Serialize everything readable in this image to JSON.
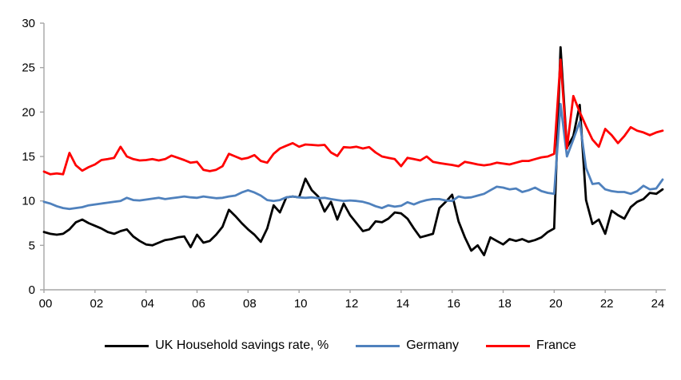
{
  "chart_data": {
    "type": "line",
    "title": "",
    "xlabel": "",
    "ylabel": "",
    "grid": false,
    "legend_position": "bottom",
    "x_start_year": 2000,
    "x_points_per_year": 4,
    "xlim_years": [
      0,
      24.5
    ],
    "ylim": [
      0,
      30
    ],
    "y_ticks": [
      0,
      5,
      10,
      15,
      20,
      25,
      30
    ],
    "x_tick_years": [
      0,
      2,
      4,
      6,
      8,
      10,
      12,
      14,
      16,
      18,
      20,
      22,
      24
    ],
    "x_tick_labels": [
      "00",
      "02",
      "04",
      "06",
      "08",
      "10",
      "12",
      "14",
      "16",
      "18",
      "20",
      "22",
      "24"
    ],
    "axis_color": "#a6a6a6",
    "series": [
      {
        "name": "UK Household savings rate, %",
        "color": "#000000",
        "values": [
          6.5,
          6.3,
          6.2,
          6.3,
          6.8,
          7.6,
          7.9,
          7.5,
          7.2,
          6.9,
          6.5,
          6.3,
          6.6,
          6.8,
          6.0,
          5.5,
          5.1,
          5.0,
          5.3,
          5.6,
          5.7,
          5.9,
          6.0,
          4.8,
          6.2,
          5.3,
          5.5,
          6.2,
          7.1,
          9.0,
          8.3,
          7.5,
          6.8,
          6.2,
          5.4,
          6.9,
          9.5,
          8.7,
          10.4,
          10.5,
          10.4,
          12.5,
          11.2,
          10.5,
          8.8,
          9.9,
          7.9,
          9.7,
          8.4,
          7.5,
          6.6,
          6.8,
          7.7,
          7.6,
          8.0,
          8.7,
          8.6,
          8.0,
          6.9,
          5.9,
          6.1,
          6.3,
          9.2,
          9.9,
          10.7,
          7.7,
          5.9,
          4.4,
          5.0,
          3.9,
          5.9,
          5.5,
          5.1,
          5.7,
          5.5,
          5.7,
          5.4,
          5.6,
          5.9,
          6.5,
          6.9,
          27.3,
          16.0,
          17.3,
          20.8,
          10.1,
          7.4,
          7.9,
          6.3,
          8.9,
          8.4,
          8.0,
          9.3,
          9.9,
          10.2,
          10.9,
          10.8,
          11.3
        ]
      },
      {
        "name": "Germany",
        "color": "#4f81bd",
        "values": [
          9.9,
          9.7,
          9.4,
          9.2,
          9.1,
          9.2,
          9.3,
          9.5,
          9.6,
          9.7,
          9.8,
          9.9,
          10.0,
          10.35,
          10.1,
          10.05,
          10.15,
          10.25,
          10.35,
          10.2,
          10.3,
          10.4,
          10.5,
          10.4,
          10.35,
          10.5,
          10.4,
          10.3,
          10.35,
          10.5,
          10.6,
          10.95,
          11.2,
          10.95,
          10.6,
          10.1,
          10.0,
          10.1,
          10.4,
          10.5,
          10.4,
          10.35,
          10.4,
          10.3,
          10.35,
          10.2,
          10.1,
          10.0,
          10.05,
          10.0,
          9.9,
          9.7,
          9.4,
          9.2,
          9.5,
          9.35,
          9.45,
          9.85,
          9.6,
          9.9,
          10.1,
          10.2,
          10.2,
          10.05,
          10.0,
          10.5,
          10.35,
          10.4,
          10.6,
          10.8,
          11.2,
          11.6,
          11.5,
          11.3,
          11.4,
          11.0,
          11.2,
          11.5,
          11.1,
          10.9,
          10.8,
          20.9,
          15.0,
          16.9,
          18.9,
          13.7,
          11.9,
          12.0,
          11.3,
          11.1,
          11.0,
          11.0,
          10.8,
          11.1,
          11.7,
          11.3,
          11.4,
          12.4
        ]
      },
      {
        "name": "France",
        "color": "#ff0000",
        "values": [
          13.3,
          13.0,
          13.1,
          13.0,
          15.4,
          14.0,
          13.4,
          13.8,
          14.1,
          14.6,
          14.7,
          14.85,
          16.1,
          15.0,
          14.7,
          14.55,
          14.6,
          14.7,
          14.55,
          14.7,
          15.1,
          14.85,
          14.6,
          14.3,
          14.4,
          13.5,
          13.35,
          13.5,
          13.9,
          15.3,
          15.0,
          14.7,
          14.85,
          15.15,
          14.5,
          14.3,
          15.3,
          15.9,
          16.2,
          16.5,
          16.1,
          16.35,
          16.3,
          16.25,
          16.3,
          15.45,
          15.05,
          16.05,
          16.0,
          16.1,
          15.9,
          16.05,
          15.45,
          15.0,
          14.85,
          14.7,
          13.9,
          14.85,
          14.7,
          14.55,
          15.0,
          14.4,
          14.25,
          14.15,
          14.05,
          13.9,
          14.4,
          14.25,
          14.1,
          14.0,
          14.1,
          14.3,
          14.2,
          14.1,
          14.3,
          14.5,
          14.5,
          14.7,
          14.9,
          15.0,
          15.3,
          25.9,
          15.9,
          21.8,
          20.0,
          18.4,
          16.9,
          16.1,
          18.1,
          17.4,
          16.5,
          17.3,
          18.3,
          17.9,
          17.7,
          17.4,
          17.7,
          17.9
        ]
      }
    ]
  },
  "legend": {
    "items": [
      {
        "label": "UK Household savings rate, %"
      },
      {
        "label": "Germany"
      },
      {
        "label": "France"
      }
    ]
  }
}
